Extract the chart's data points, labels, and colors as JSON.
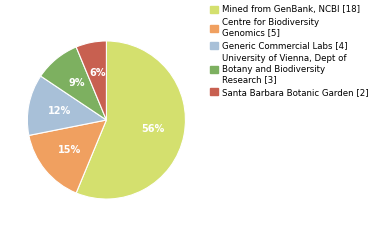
{
  "labels": [
    "Mined from GenBank, NCBI [18]",
    "Centre for Biodiversity\nGenomics [5]",
    "Generic Commercial Labs [4]",
    "University of Vienna, Dept of\nBotany and Biodiversity\nResearch [3]",
    "Santa Barbara Botanic Garden [2]"
  ],
  "values": [
    18,
    5,
    4,
    3,
    2
  ],
  "colors": [
    "#d4e06e",
    "#f0a060",
    "#a8c0d8",
    "#7db060",
    "#c86050"
  ],
  "pct_labels": [
    "56%",
    "15%",
    "12%",
    "9%",
    "6%"
  ],
  "startangle": 90,
  "background_color": "#ffffff",
  "fontsize_pct": 7.0,
  "fontsize_legend": 6.2
}
